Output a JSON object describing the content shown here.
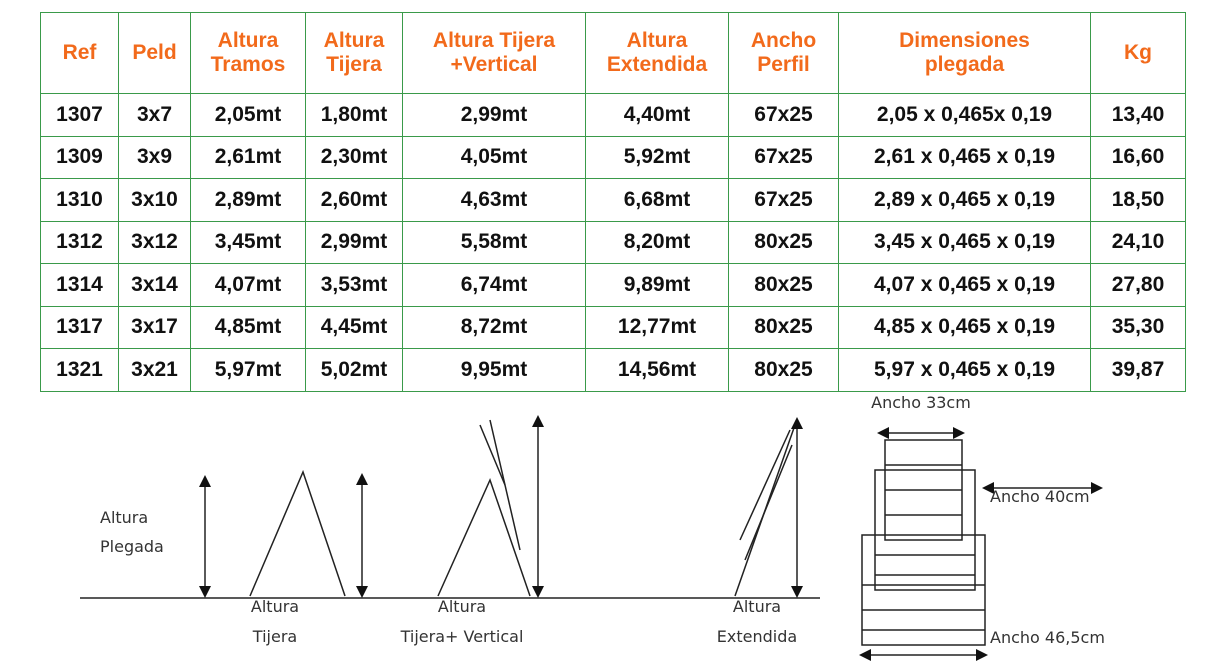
{
  "table": {
    "headers": [
      [
        "Ref"
      ],
      [
        "Peld"
      ],
      [
        "Altura",
        "Tramos"
      ],
      [
        "Altura",
        "Tijera"
      ],
      [
        "Altura Tijera",
        "+Vertical"
      ],
      [
        "Altura",
        "Extendida"
      ],
      [
        "Ancho",
        "Perfil"
      ],
      [
        "Dimensiones",
        "plegada"
      ],
      [
        "Kg"
      ]
    ],
    "rows": [
      [
        "1307",
        "3x7",
        "2,05mt",
        "1,80mt",
        "2,99mt",
        "4,40mt",
        "67x25",
        "2,05 x 0,465x 0,19",
        "13,40"
      ],
      [
        "1309",
        "3x9",
        "2,61mt",
        "2,30mt",
        "4,05mt",
        "5,92mt",
        "67x25",
        "2,61 x 0,465 x 0,19",
        "16,60"
      ],
      [
        "1310",
        "3x10",
        "2,89mt",
        "2,60mt",
        "4,63mt",
        "6,68mt",
        "67x25",
        "2,89 x 0,465 x 0,19",
        "18,50"
      ],
      [
        "1312",
        "3x12",
        "3,45mt",
        "2,99mt",
        "5,58mt",
        "8,20mt",
        "80x25",
        "3,45 x 0,465 x 0,19",
        "24,10"
      ],
      [
        "1314",
        "3x14",
        "4,07mt",
        "3,53mt",
        "6,74mt",
        "9,89mt",
        "80x25",
        "4,07 x 0,465 x 0,19",
        "27,80"
      ],
      [
        "1317",
        "3x17",
        "4,85mt",
        "4,45mt",
        "8,72mt",
        "12,77mt",
        "80x25",
        "4,85 x 0,465 x 0,19",
        "35,30"
      ],
      [
        "1321",
        "3x21",
        "5,97mt",
        "5,02mt",
        "9,95mt",
        "14,56mt",
        "80x25",
        "5,97 x 0,465 x 0,19",
        "39,87"
      ]
    ]
  },
  "diagram": {
    "labels": [
      [
        "Altura",
        "Plegada"
      ],
      [
        "Altura",
        "Tijera"
      ],
      [
        "Altura",
        "Tijera+ Vertical"
      ],
      [
        "Altura",
        "Extendida"
      ],
      [
        "Ancho 33cm"
      ],
      [
        "Ancho 40cm"
      ],
      [
        "Ancho 46,5cm"
      ]
    ]
  }
}
